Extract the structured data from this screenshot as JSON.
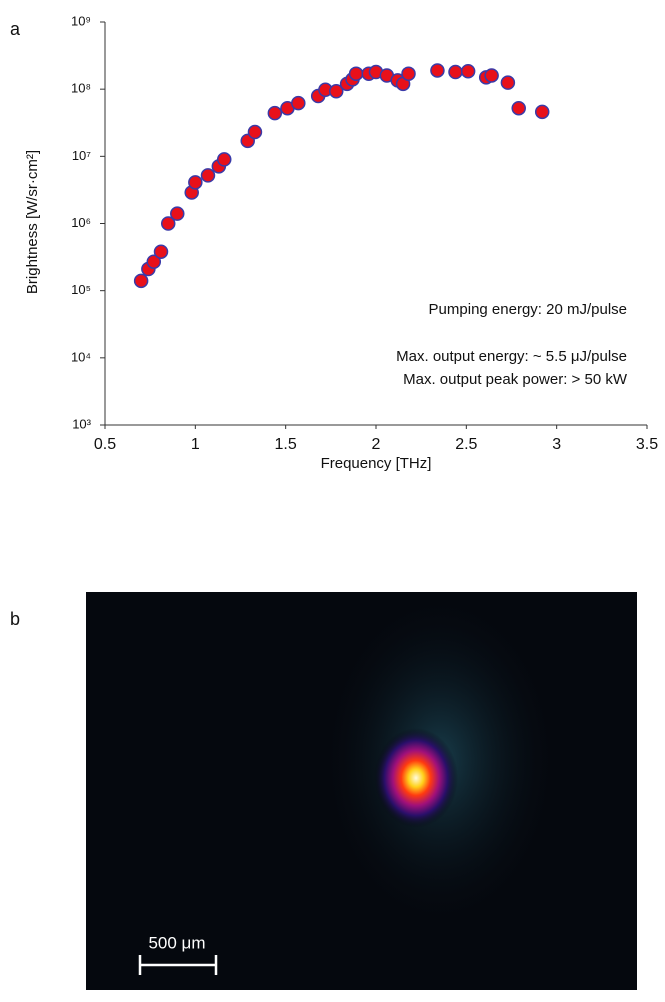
{
  "panel_labels": [
    "a",
    "b"
  ],
  "scale_bar_label": "500 μm",
  "chart_data": {
    "type": "scatter",
    "x_label": "Frequency [THz]",
    "y_label": "Brightness [W/sr·cm²]",
    "annotations": [
      "Pumping energy: 20 mJ/pulse",
      "Max. output energy: ~ 5.5 μJ/pulse",
      "Max. output peak power: > 50 kW"
    ],
    "log_y": true,
    "xlim": [
      0.5,
      3.5
    ],
    "xticks": [
      0.5,
      1,
      1.5,
      2,
      2.5,
      3,
      3.5
    ],
    "ylim": [
      1000,
      1000000000
    ],
    "yticks": [
      {
        "value": 1000,
        "label": "10³"
      },
      {
        "value": 10000,
        "label": "10⁴"
      },
      {
        "value": 100000,
        "label": "10⁵"
      },
      {
        "value": 1000000,
        "label": "10⁶"
      },
      {
        "value": 10000000,
        "label": "10⁷"
      },
      {
        "value": 100000000,
        "label": "10⁸"
      },
      {
        "value": 1000000000,
        "label": "10⁹"
      }
    ],
    "color": "#e8101a",
    "edge_color": "#3a3aa8",
    "x": [
      0.7,
      0.74,
      0.77,
      0.81,
      0.85,
      0.9,
      0.98,
      1.0,
      1.07,
      1.13,
      1.16,
      1.29,
      1.33,
      1.44,
      1.51,
      1.57,
      1.68,
      1.72,
      1.78,
      1.84,
      1.87,
      1.89,
      1.96,
      2.0,
      2.06,
      2.12,
      2.15,
      2.18,
      2.34,
      2.44,
      2.51,
      2.61,
      2.64,
      2.73,
      2.79,
      2.92
    ],
    "values": [
      140000,
      210000,
      270000,
      380000,
      1000000,
      1400000,
      2900000,
      4100000,
      5200000,
      7100000,
      9000000,
      17000000,
      23000000,
      44000000,
      52000000,
      62000000,
      79000000,
      98000000,
      93000000,
      120000000,
      140000000,
      170000000,
      170000000,
      180000000,
      160000000,
      135000000,
      120000000,
      170000000,
      190000000,
      180000000,
      185000000,
      150000000,
      160000000,
      125000000,
      52000000,
      46000000
    ]
  }
}
